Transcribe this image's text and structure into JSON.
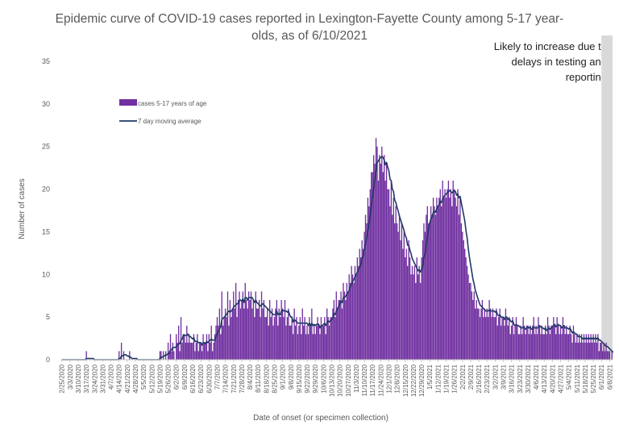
{
  "chart_data": {
    "type": "bar",
    "title": "Epidemic curve of COVID-19 cases reported in Lexington-Fayette County among 5-17 year-olds, as of 6/10/2021",
    "xlabel": "Date of onset (or specimen collection)",
    "ylabel": "Number of cases",
    "ylim": [
      0,
      35
    ],
    "y_ticks": [
      0,
      5,
      10,
      15,
      20,
      25,
      30,
      35
    ],
    "x_start": "2/25/2020",
    "x_end": "6/10/2021",
    "x_tick_labels": [
      "2/25/2020",
      "3/3/2020",
      "3/10/2020",
      "3/17/2020",
      "3/24/2020",
      "3/31/2020",
      "4/7/2020",
      "4/14/2020",
      "4/21/2020",
      "4/28/2020",
      "5/5/2020",
      "5/12/2020",
      "5/19/2020",
      "5/26/2020",
      "6/2/2020",
      "6/9/2020",
      "6/16/2020",
      "6/23/2020",
      "6/30/2020",
      "7/7/2020",
      "7/14/2020",
      "7/21/2020",
      "7/28/2020",
      "8/4/2020",
      "8/11/2020",
      "8/18/2020",
      "8/25/2020",
      "9/1/2020",
      "9/8/2020",
      "9/15/2020",
      "9/22/2020",
      "9/29/2020",
      "10/6/2020",
      "10/13/2020",
      "10/20/2020",
      "10/27/2020",
      "11/3/2020",
      "11/10/2020",
      "11/17/2020",
      "11/24/2020",
      "12/1/2020",
      "12/8/2020",
      "12/15/2020",
      "12/22/2020",
      "12/29/2020",
      "1/5/2021",
      "1/12/2021",
      "1/19/2021",
      "1/26/2021",
      "2/2/2021",
      "2/9/2021",
      "2/16/2021",
      "2/23/2021",
      "3/2/2021",
      "3/9/2021",
      "3/16/2021",
      "3/23/2021",
      "3/30/2021",
      "4/6/2021",
      "4/13/2021",
      "4/20/2021",
      "4/27/2021",
      "5/4/2021",
      "5/11/2021",
      "5/18/2021",
      "5/25/2021",
      "6/1/2021",
      "6/8/2021"
    ],
    "series": [
      {
        "name": "cases 5-17 years of age",
        "kind": "bar",
        "color": "#7030A0",
        "weekly_start_dates": [
          "2/25/2020",
          "3/3/2020",
          "3/10/2020",
          "3/17/2020",
          "3/24/2020",
          "3/31/2020",
          "4/7/2020",
          "4/14/2020",
          "4/21/2020",
          "4/28/2020",
          "5/5/2020",
          "5/12/2020",
          "5/19/2020",
          "5/26/2020",
          "6/2/2020",
          "6/9/2020",
          "6/16/2020",
          "6/23/2020",
          "6/30/2020",
          "7/7/2020",
          "7/14/2020",
          "7/21/2020",
          "7/28/2020",
          "8/4/2020",
          "8/11/2020",
          "8/18/2020",
          "8/25/2020",
          "9/1/2020",
          "9/8/2020",
          "9/15/2020",
          "9/22/2020",
          "9/29/2020",
          "10/6/2020",
          "10/13/2020",
          "10/20/2020",
          "10/27/2020",
          "11/3/2020",
          "11/10/2020",
          "11/17/2020",
          "11/24/2020",
          "12/1/2020",
          "12/8/2020",
          "12/15/2020",
          "12/22/2020",
          "12/29/2020",
          "1/5/2021",
          "1/12/2021",
          "1/19/2021",
          "1/26/2021",
          "2/2/2021",
          "2/9/2021",
          "2/16/2021",
          "2/23/2021",
          "3/2/2021",
          "3/9/2021",
          "3/16/2021",
          "3/23/2021",
          "3/30/2021",
          "4/6/2021",
          "4/13/2021",
          "4/20/2021",
          "4/27/2021",
          "5/4/2021",
          "5/11/2021",
          "5/18/2021",
          "5/25/2021",
          "6/1/2021",
          "6/8/2021"
        ],
        "daily_values": [
          [
            0,
            0,
            0,
            0,
            0,
            0,
            0
          ],
          [
            0,
            0,
            0,
            0,
            0,
            0,
            0
          ],
          [
            0,
            0,
            0,
            0,
            0,
            0,
            0
          ],
          [
            1,
            0,
            0,
            0,
            0,
            0,
            0
          ],
          [
            0,
            0,
            0,
            0,
            0,
            0,
            0
          ],
          [
            0,
            0,
            0,
            0,
            0,
            0,
            0
          ],
          [
            0,
            0,
            0,
            0,
            0,
            0,
            0
          ],
          [
            1,
            0,
            2,
            0,
            1,
            0,
            0
          ],
          [
            0,
            0,
            1,
            0,
            0,
            0,
            0
          ],
          [
            0,
            0,
            0,
            0,
            0,
            0,
            0
          ],
          [
            0,
            0,
            0,
            0,
            0,
            0,
            0
          ],
          [
            0,
            0,
            0,
            0,
            0,
            0,
            0
          ],
          [
            1,
            1,
            0,
            1,
            0,
            1,
            0
          ],
          [
            2,
            1,
            3,
            1,
            2,
            1,
            0
          ],
          [
            3,
            2,
            4,
            1,
            5,
            2,
            3
          ],
          [
            3,
            2,
            4,
            2,
            3,
            2,
            2
          ],
          [
            2,
            3,
            1,
            2,
            3,
            1,
            2
          ],
          [
            2,
            1,
            3,
            2,
            2,
            3,
            1
          ],
          [
            3,
            2,
            4,
            1,
            2,
            3,
            4
          ],
          [
            5,
            4,
            6,
            3,
            8,
            4,
            5
          ],
          [
            6,
            5,
            8,
            4,
            7,
            5,
            6
          ],
          [
            8,
            6,
            9,
            5,
            7,
            8,
            6
          ],
          [
            7,
            8,
            6,
            9,
            7,
            6,
            8
          ],
          [
            7,
            8,
            6,
            7,
            5,
            8,
            6
          ],
          [
            6,
            7,
            5,
            8,
            6,
            7,
            5
          ],
          [
            5,
            6,
            4,
            7,
            5,
            6,
            4
          ],
          [
            5,
            6,
            7,
            4,
            6,
            5,
            7
          ],
          [
            6,
            5,
            7,
            4,
            5,
            6,
            4
          ],
          [
            4,
            5,
            3,
            6,
            4,
            5,
            3
          ],
          [
            4,
            5,
            3,
            6,
            4,
            5,
            3
          ],
          [
            4,
            3,
            5,
            4,
            6,
            3,
            4
          ],
          [
            3,
            4,
            5,
            4,
            3,
            5,
            4
          ],
          [
            4,
            5,
            3,
            6,
            5,
            4,
            5
          ],
          [
            5,
            6,
            7,
            5,
            8,
            6,
            7
          ],
          [
            7,
            8,
            6,
            9,
            8,
            7,
            9
          ],
          [
            8,
            10,
            9,
            11,
            10,
            9,
            11
          ],
          [
            10,
            12,
            11,
            13,
            12,
            14,
            13
          ],
          [
            15,
            17,
            16,
            19,
            18,
            20,
            22
          ],
          [
            22,
            24,
            23,
            26,
            25,
            21,
            24
          ],
          [
            23,
            25,
            22,
            24,
            21,
            23,
            20
          ],
          [
            20,
            18,
            21,
            17,
            19,
            16,
            18
          ],
          [
            16,
            15,
            17,
            14,
            16,
            13,
            15
          ],
          [
            12,
            13,
            11,
            14,
            12,
            10,
            11
          ],
          [
            10,
            11,
            9,
            12,
            10,
            11,
            9
          ],
          [
            12,
            14,
            16,
            15,
            17,
            18,
            16
          ],
          [
            16,
            18,
            17,
            19,
            18,
            17,
            19
          ],
          [
            18,
            19,
            20,
            18,
            21,
            19,
            20
          ],
          [
            19,
            20,
            21,
            19,
            20,
            18,
            21
          ],
          [
            20,
            19,
            18,
            20,
            17,
            19,
            16
          ],
          [
            15,
            14,
            13,
            12,
            11,
            10,
            9
          ],
          [
            9,
            8,
            7,
            8,
            6,
            7,
            6
          ],
          [
            6,
            5,
            6,
            7,
            5,
            6,
            5
          ],
          [
            6,
            5,
            7,
            6,
            5,
            6,
            5
          ],
          [
            5,
            6,
            4,
            5,
            6,
            4,
            5
          ],
          [
            5,
            4,
            6,
            5,
            4,
            5,
            3
          ],
          [
            4,
            5,
            3,
            4,
            5,
            4,
            3
          ],
          [
            3,
            4,
            3,
            5,
            4,
            3,
            4
          ],
          [
            4,
            3,
            4,
            3,
            4,
            5,
            3
          ],
          [
            4,
            3,
            5,
            4,
            3,
            4,
            3
          ],
          [
            3,
            4,
            3,
            5,
            4,
            3,
            4
          ],
          [
            4,
            5,
            4,
            3,
            5,
            4,
            3
          ],
          [
            4,
            3,
            5,
            4,
            3,
            4,
            3
          ],
          [
            3,
            4,
            3,
            2,
            4,
            3,
            2
          ],
          [
            3,
            2,
            3,
            2,
            3,
            2,
            3
          ],
          [
            2,
            3,
            2,
            3,
            2,
            3,
            2
          ],
          [
            3,
            2,
            3,
            2,
            3,
            1,
            2
          ],
          [
            2,
            1,
            2,
            1,
            2,
            1,
            1
          ],
          [
            1,
            0,
            1,
            0
          ]
        ]
      },
      {
        "name": "7 day moving average",
        "kind": "line",
        "color": "#1F3864"
      }
    ],
    "annotation": {
      "text": "Likely to increase due to delays in testing and reporting",
      "shaded_from": "6/1/2021",
      "shaded_to": "6/10/2021"
    },
    "colors": {
      "bars": "#7030A0",
      "line": "#1F3864",
      "shading": "#D9D9D9",
      "axis_text": "#595959"
    },
    "legend_position": "upper-left"
  }
}
